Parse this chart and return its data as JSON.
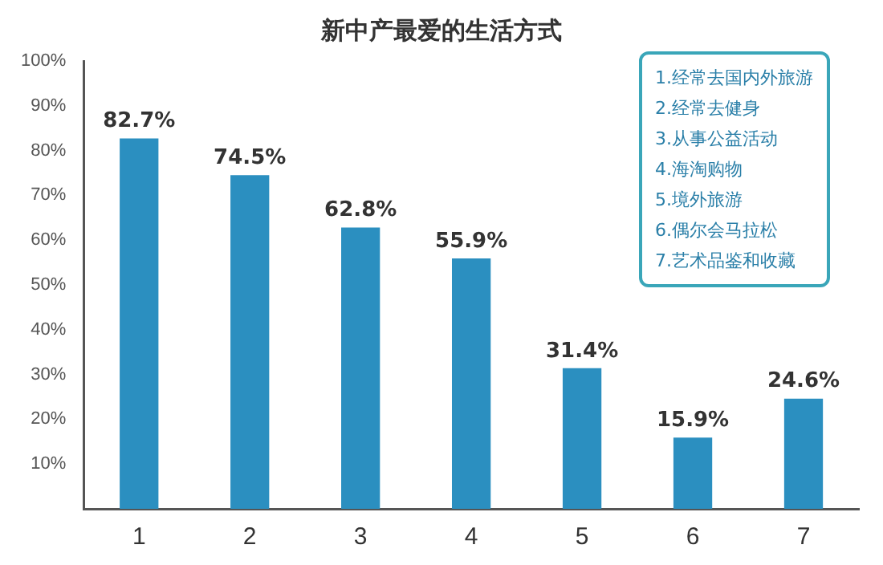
{
  "chart_data": {
    "type": "bar",
    "title": "新中产最爱的生活方式",
    "categories": [
      "1",
      "2",
      "3",
      "4",
      "5",
      "6",
      "7"
    ],
    "values": [
      82.7,
      74.5,
      62.8,
      55.9,
      31.4,
      15.9,
      24.6
    ],
    "value_labels": [
      "82.7%",
      "74.5%",
      "62.8%",
      "55.9%",
      "31.4%",
      "15.9%",
      "24.6%"
    ],
    "color": "#2b8fc0",
    "ylim": [
      0,
      100
    ],
    "yticks": [
      {
        "value": 0,
        "label": null
      },
      {
        "value": 10,
        "label": "10%"
      },
      {
        "value": 20,
        "label": "20%"
      },
      {
        "value": 30,
        "label": "30%"
      },
      {
        "value": 40,
        "label": "40%"
      },
      {
        "value": 50,
        "label": "50%"
      },
      {
        "value": 60,
        "label": "60%"
      },
      {
        "value": 70,
        "label": "70%"
      },
      {
        "value": 80,
        "label": "80%"
      },
      {
        "value": 90,
        "label": "90%"
      },
      {
        "value": 100,
        "label": "100%"
      }
    ],
    "grid": false,
    "annotations": [
      "1.经常去国内外旅游",
      "2.经常去健身",
      "3.从事公益活动",
      "4.海淘购物",
      "5.境外旅游",
      "6.偶尔会马拉松",
      "7.艺术品鉴和收藏"
    ]
  }
}
